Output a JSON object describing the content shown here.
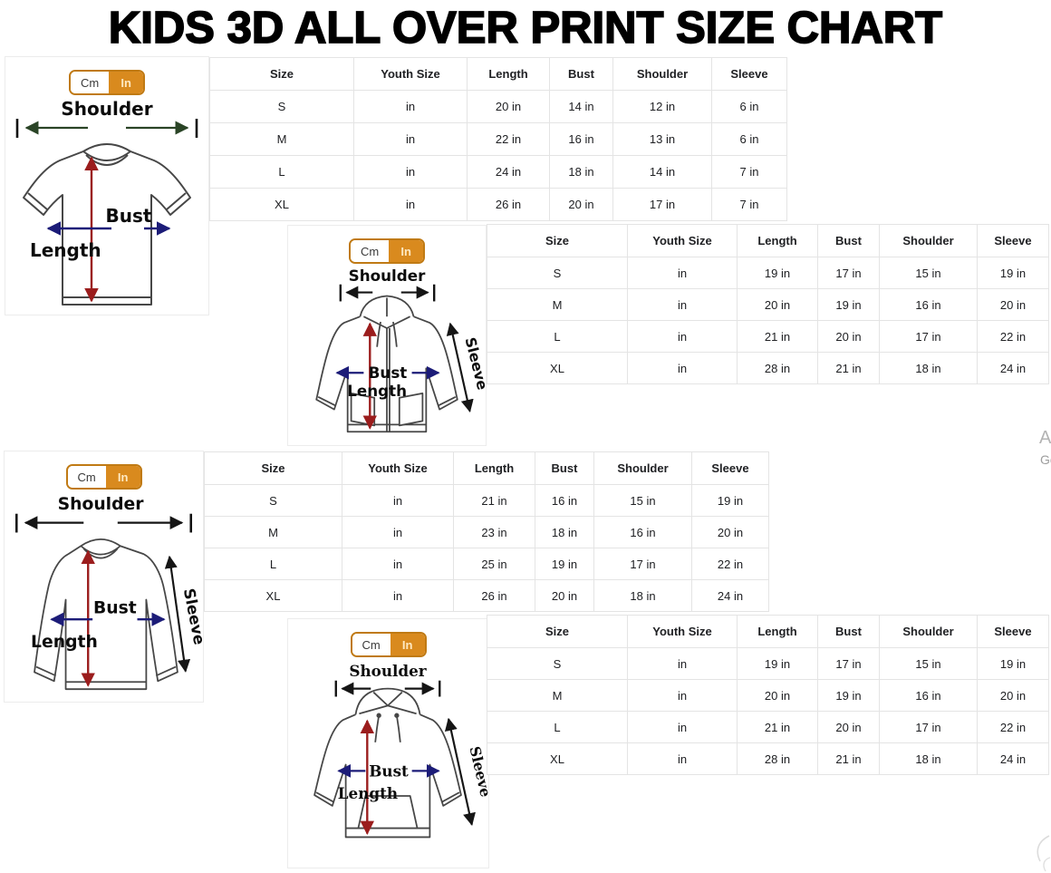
{
  "title": "KIDS 3D ALL OVER PRINT SIZE CHART",
  "unit_toggle": {
    "cm": "Cm",
    "in": "In",
    "selected": "In"
  },
  "labels": {
    "shoulder": "Shoulder",
    "bust": "Bust",
    "length": "Length",
    "sleeve": "Sleeve"
  },
  "table_headers": [
    "Size",
    "Youth Size",
    "Length",
    "Bust",
    "Shoulder",
    "Sleeve"
  ],
  "sections": [
    {
      "garment": "t-shirt",
      "rows": [
        [
          "S",
          "in",
          "20 in",
          "14 in",
          "12 in",
          "6 in"
        ],
        [
          "M",
          "in",
          "22 in",
          "16 in",
          "13 in",
          "6 in"
        ],
        [
          "L",
          "in",
          "24 in",
          "18 in",
          "14 in",
          "7 in"
        ],
        [
          "XL",
          "in",
          "26 in",
          "20 in",
          "17 in",
          "7 in"
        ]
      ]
    },
    {
      "garment": "zip-hoodie",
      "rows": [
        [
          "S",
          "in",
          "19 in",
          "17 in",
          "15 in",
          "19 in"
        ],
        [
          "M",
          "in",
          "20 in",
          "19 in",
          "16 in",
          "20 in"
        ],
        [
          "L",
          "in",
          "21 in",
          "20 in",
          "17 in",
          "22 in"
        ],
        [
          "XL",
          "in",
          "28 in",
          "21 in",
          "18 in",
          "24 in"
        ]
      ]
    },
    {
      "garment": "long-sleeve-shirt",
      "rows": [
        [
          "S",
          "in",
          "21 in",
          "16 in",
          "15 in",
          "19 in"
        ],
        [
          "M",
          "in",
          "23 in",
          "18 in",
          "16 in",
          "20 in"
        ],
        [
          "L",
          "in",
          "25 in",
          "19 in",
          "17 in",
          "22 in"
        ],
        [
          "XL",
          "in",
          "26 in",
          "20 in",
          "18 in",
          "24 in"
        ]
      ]
    },
    {
      "garment": "hoodie",
      "rows": [
        [
          "S",
          "in",
          "19 in",
          "17 in",
          "15 in",
          "19 in"
        ],
        [
          "M",
          "in",
          "20 in",
          "19 in",
          "16 in",
          "20 in"
        ],
        [
          "L",
          "in",
          "21 in",
          "20 in",
          "17 in",
          "22 in"
        ],
        [
          "XL",
          "in",
          "28 in",
          "21 in",
          "18 in",
          "24 in"
        ]
      ]
    }
  ],
  "watermark": {
    "line1": "A",
    "line2": "Go"
  },
  "colors": {
    "accent_orange": "#d98a1e",
    "toggle_border": "#c07a14",
    "arrow_red": "#9b1d1d",
    "arrow_navy": "#1c1c78",
    "arrow_green": "#2a4426",
    "arrow_black": "#151515",
    "table_border": "#e4e4e4"
  }
}
